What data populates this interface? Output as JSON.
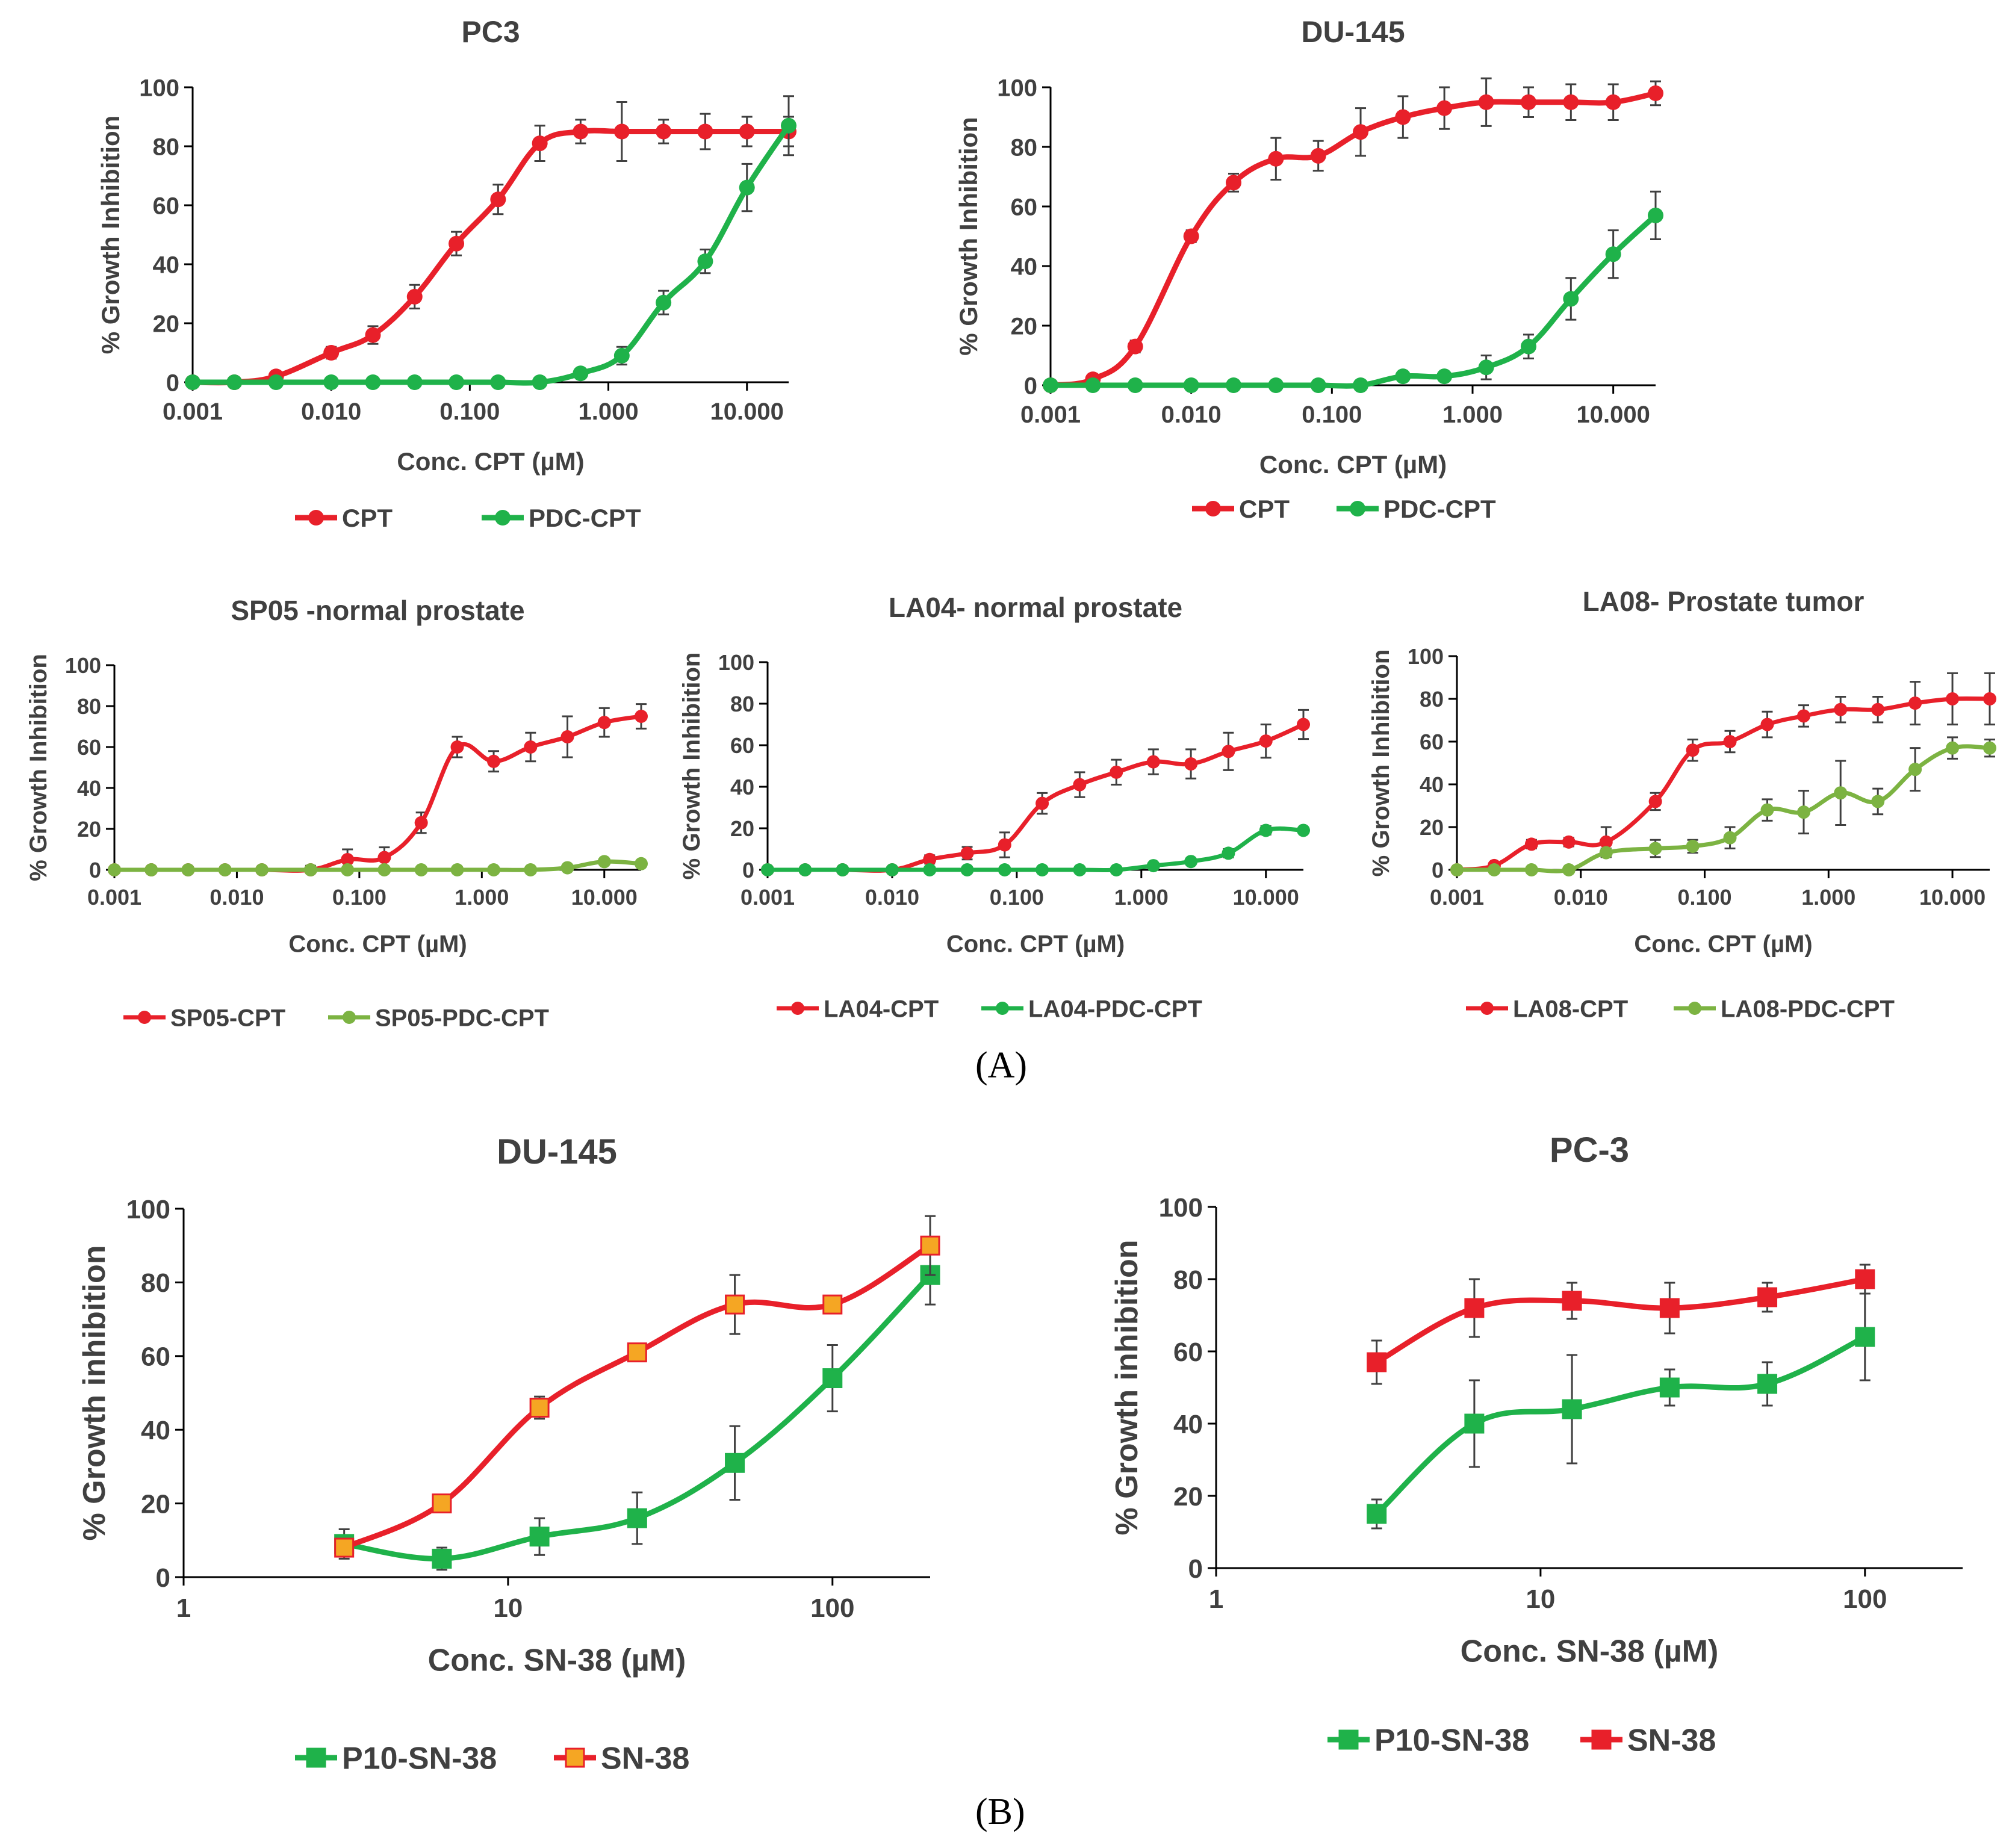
{
  "panels": {
    "a_label": "(A)",
    "b_label": "(B)"
  },
  "colors": {
    "red": "#e8202a",
    "green": "#1fb24a",
    "olive_green": "#7cb342",
    "axis": "#000000",
    "text": "#404040",
    "err": "#404040"
  },
  "chart_data": [
    {
      "id": "pc3-cpt",
      "type": "line",
      "xscale": "log",
      "title": "PC3",
      "xlabel": "Conc. CPT (µM)",
      "ylabel": "% Growth Inhibition",
      "ylim": [
        0,
        100
      ],
      "yticks": [
        0,
        20,
        40,
        60,
        80,
        100
      ],
      "xlim": [
        0.001,
        20
      ],
      "xticks": [
        0.001,
        0.01,
        0.1,
        1,
        10
      ],
      "xtick_labels": [
        "0.001",
        "0.010",
        "0.100",
        "1.000",
        "10.000"
      ],
      "series": [
        {
          "name": "CPT",
          "color": "red",
          "marker": "circle",
          "x": [
            0.001,
            0.002,
            0.004,
            0.01,
            0.02,
            0.04,
            0.08,
            0.16,
            0.32,
            0.63,
            1.25,
            2.5,
            5,
            10,
            20
          ],
          "y": [
            0,
            0,
            2,
            10,
            16,
            29,
            47,
            62,
            81,
            85,
            85,
            85,
            85,
            85,
            85
          ],
          "err": [
            0,
            0,
            0,
            2,
            3,
            4,
            4,
            5,
            6,
            4,
            10,
            4,
            6,
            5,
            5
          ]
        },
        {
          "name": "PDC-CPT",
          "color": "green",
          "marker": "circle",
          "x": [
            0.001,
            0.002,
            0.004,
            0.01,
            0.02,
            0.04,
            0.08,
            0.16,
            0.32,
            0.63,
            1.25,
            2.5,
            5,
            10,
            20
          ],
          "y": [
            0,
            0,
            0,
            0,
            0,
            0,
            0,
            0,
            0,
            3,
            9,
            27,
            41,
            66,
            87
          ],
          "err": [
            0,
            0,
            0,
            0,
            0,
            0,
            0,
            0,
            0,
            1,
            3,
            4,
            4,
            8,
            10
          ]
        }
      ]
    },
    {
      "id": "du145-cpt",
      "type": "line",
      "xscale": "log",
      "title": "DU-145",
      "xlabel": "Conc. CPT (µM)",
      "ylabel": "% Growth Inhibition",
      "ylim": [
        0,
        100
      ],
      "yticks": [
        0,
        20,
        40,
        60,
        80,
        100
      ],
      "xlim": [
        0.001,
        20
      ],
      "xticks": [
        0.001,
        0.01,
        0.1,
        1,
        10
      ],
      "xtick_labels": [
        "0.001",
        "0.010",
        "0.100",
        "1.000",
        "10.000"
      ],
      "series": [
        {
          "name": "CPT",
          "color": "red",
          "marker": "circle",
          "x": [
            0.001,
            0.002,
            0.004,
            0.01,
            0.02,
            0.04,
            0.08,
            0.16,
            0.32,
            0.63,
            1.25,
            2.5,
            5,
            10,
            20
          ],
          "y": [
            0,
            2,
            13,
            50,
            68,
            76,
            77,
            85,
            90,
            93,
            95,
            95,
            95,
            95,
            98
          ],
          "err": [
            0,
            1,
            2,
            2,
            3,
            7,
            5,
            8,
            7,
            7,
            8,
            5,
            6,
            6,
            4
          ]
        },
        {
          "name": "PDC-CPT",
          "color": "green",
          "marker": "circle",
          "x": [
            0.001,
            0.002,
            0.004,
            0.01,
            0.02,
            0.04,
            0.08,
            0.16,
            0.32,
            0.63,
            1.25,
            2.5,
            5,
            10,
            20
          ],
          "y": [
            0,
            0,
            0,
            0,
            0,
            0,
            0,
            0,
            3,
            3,
            6,
            13,
            29,
            44,
            57
          ],
          "err": [
            0,
            0,
            0,
            0,
            0,
            0,
            0,
            0,
            1,
            1,
            4,
            4,
            7,
            8,
            8
          ]
        }
      ]
    },
    {
      "id": "sp05-cpt",
      "type": "line",
      "xscale": "log",
      "title": "SP05 -normal prostate",
      "xlabel": "Conc. CPT (µM)",
      "ylabel": "% Growth Inhibition",
      "ylim": [
        0,
        100
      ],
      "yticks": [
        0,
        20,
        40,
        60,
        80,
        100
      ],
      "xlim": [
        0.001,
        20
      ],
      "xticks": [
        0.001,
        0.01,
        0.1,
        1,
        10
      ],
      "xtick_labels": [
        "0.001",
        "0.010",
        "0.100",
        "1.000",
        "10.000"
      ],
      "series": [
        {
          "name": "SP05-CPT",
          "color": "red",
          "marker": "circle",
          "x": [
            0.001,
            0.002,
            0.004,
            0.008,
            0.016,
            0.04,
            0.08,
            0.16,
            0.32,
            0.63,
            1.25,
            2.5,
            5,
            10,
            20
          ],
          "y": [
            0,
            0,
            0,
            0,
            0,
            0,
            5,
            6,
            23,
            60,
            53,
            60,
            65,
            72,
            75
          ],
          "err": [
            0,
            0,
            0,
            0,
            0,
            2,
            5,
            5,
            5,
            5,
            5,
            7,
            10,
            7,
            6
          ]
        },
        {
          "name": "SP05-PDC-CPT",
          "color": "olive_green",
          "marker": "circle",
          "x": [
            0.001,
            0.002,
            0.004,
            0.008,
            0.016,
            0.04,
            0.08,
            0.16,
            0.32,
            0.63,
            1.25,
            2.5,
            5,
            10,
            20
          ],
          "y": [
            0,
            0,
            0,
            0,
            0,
            0,
            0,
            0,
            0,
            0,
            0,
            0,
            1,
            4,
            3
          ],
          "err": [
            0,
            0,
            0,
            0,
            0,
            0,
            0,
            0,
            0,
            0,
            0,
            0,
            1,
            1,
            1
          ]
        }
      ]
    },
    {
      "id": "la04-cpt",
      "type": "line",
      "xscale": "log",
      "title": "LA04- normal prostate",
      "xlabel": "Conc. CPT (µM)",
      "ylabel": "% Growth Inhibition",
      "ylim": [
        0,
        100
      ],
      "yticks": [
        0,
        20,
        40,
        60,
        80,
        100
      ],
      "xlim": [
        0.001,
        20
      ],
      "xticks": [
        0.001,
        0.01,
        0.1,
        1,
        10
      ],
      "xtick_labels": [
        "0.001",
        "0.010",
        "0.100",
        "1.000",
        "10.000"
      ],
      "series": [
        {
          "name": "LA04-CPT",
          "color": "red",
          "marker": "circle",
          "x": [
            0.001,
            0.002,
            0.004,
            0.01,
            0.02,
            0.04,
            0.08,
            0.16,
            0.32,
            0.63,
            1.25,
            2.5,
            5,
            10,
            20
          ],
          "y": [
            0,
            0,
            0,
            0,
            5,
            8,
            12,
            32,
            41,
            47,
            52,
            51,
            57,
            62,
            70
          ],
          "err": [
            0,
            0,
            0,
            0,
            2,
            3,
            6,
            5,
            6,
            6,
            6,
            7,
            9,
            8,
            7
          ]
        },
        {
          "name": "LA04-PDC-CPT",
          "color": "green",
          "marker": "circle",
          "x": [
            0.001,
            0.002,
            0.004,
            0.01,
            0.02,
            0.04,
            0.08,
            0.16,
            0.32,
            0.63,
            1.25,
            2.5,
            5,
            10,
            20
          ],
          "y": [
            0,
            0,
            0,
            0,
            0,
            0,
            0,
            0,
            0,
            0,
            2,
            4,
            8,
            19,
            19
          ],
          "err": [
            0,
            0,
            0,
            0,
            0,
            0,
            0,
            0,
            0,
            0,
            1,
            1,
            2,
            2,
            1
          ]
        }
      ]
    },
    {
      "id": "la08-cpt",
      "type": "line",
      "xscale": "log",
      "title": "LA08- Prostate tumor",
      "xlabel": "Conc. CPT (µM)",
      "ylabel": "% Growth Inhibition",
      "ylim": [
        0,
        100
      ],
      "yticks": [
        0,
        20,
        40,
        60,
        80,
        100
      ],
      "xlim": [
        0.001,
        20
      ],
      "xticks": [
        0.001,
        0.01,
        0.1,
        1,
        10
      ],
      "xtick_labels": [
        "0.001",
        "0.010",
        "0.100",
        "1.000",
        "10.000"
      ],
      "series": [
        {
          "name": "LA08-CPT",
          "color": "red",
          "marker": "circle",
          "x": [
            0.001,
            0.002,
            0.004,
            0.008,
            0.016,
            0.04,
            0.08,
            0.16,
            0.32,
            0.63,
            1.25,
            2.5,
            5,
            10,
            20
          ],
          "y": [
            0,
            2,
            12,
            13,
            13,
            32,
            56,
            60,
            68,
            72,
            75,
            75,
            78,
            80,
            80
          ],
          "err": [
            0,
            1,
            2,
            2,
            7,
            4,
            5,
            5,
            6,
            5,
            6,
            6,
            10,
            12,
            12
          ]
        },
        {
          "name": "LA08-PDC-CPT",
          "color": "olive_green",
          "marker": "circle",
          "x": [
            0.001,
            0.002,
            0.004,
            0.008,
            0.016,
            0.04,
            0.08,
            0.16,
            0.32,
            0.63,
            1.25,
            2.5,
            5,
            10,
            20
          ],
          "y": [
            0,
            0,
            0,
            0,
            8,
            10,
            11,
            15,
            28,
            27,
            36,
            32,
            47,
            57,
            57
          ],
          "err": [
            0,
            0,
            0,
            0,
            2,
            4,
            3,
            5,
            5,
            10,
            15,
            6,
            10,
            5,
            4
          ]
        }
      ]
    },
    {
      "id": "du145-sn38",
      "type": "line",
      "xscale": "log",
      "title": "DU-145",
      "xlabel": "Conc. SN-38 (µM)",
      "ylabel": "% Growth inhibition",
      "ylim": [
        0,
        100
      ],
      "yticks": [
        0,
        20,
        40,
        60,
        80,
        100
      ],
      "xlim": [
        1,
        200
      ],
      "xticks": [
        1,
        10,
        100
      ],
      "xtick_labels": [
        "1",
        "10",
        "100"
      ],
      "series": [
        {
          "name": "P10-SN-38",
          "color": "green",
          "marker": "square",
          "x": [
            3.125,
            6.25,
            12.5,
            25,
            50,
            100,
            200
          ],
          "y": [
            9,
            5,
            11,
            16,
            31,
            54,
            82
          ],
          "err": [
            4,
            3,
            5,
            7,
            10,
            9,
            8
          ]
        },
        {
          "name": "SN-38",
          "color": "red",
          "marker": "square",
          "x": [
            3.125,
            6.25,
            12.5,
            25,
            50,
            100,
            200
          ],
          "y": [
            8,
            20,
            46,
            61,
            74,
            74,
            90
          ],
          "err": [
            2,
            2,
            3,
            2,
            8,
            2,
            8
          ]
        }
      ]
    },
    {
      "id": "pc3-sn38",
      "type": "line",
      "xscale": "log",
      "title": "PC-3",
      "xlabel": "Conc. SN-38 (µM)",
      "ylabel": "% Growth inhibition",
      "ylim": [
        0,
        100
      ],
      "yticks": [
        0,
        20,
        40,
        60,
        80,
        100
      ],
      "xlim": [
        1,
        200
      ],
      "xticks": [
        1,
        10,
        100
      ],
      "xtick_labels": [
        "1",
        "10",
        "100"
      ],
      "series": [
        {
          "name": "P10-SN-38",
          "color": "green",
          "marker": "square",
          "x": [
            3.125,
            6.25,
            12.5,
            25,
            50,
            100
          ],
          "y": [
            15,
            40,
            44,
            50,
            51,
            64
          ],
          "err": [
            4,
            12,
            15,
            5,
            6,
            12
          ]
        },
        {
          "name": "SN-38",
          "color": "red",
          "marker": "square",
          "x": [
            3.125,
            6.25,
            12.5,
            25,
            50,
            100
          ],
          "y": [
            57,
            72,
            74,
            72,
            75,
            80
          ],
          "err": [
            6,
            8,
            5,
            7,
            4,
            4
          ]
        }
      ]
    }
  ]
}
